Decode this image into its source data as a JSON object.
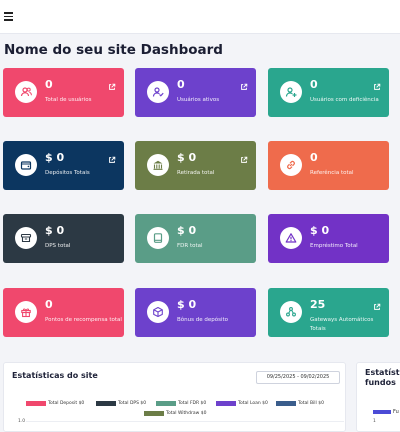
{
  "header": {
    "menu_icon": "hamburger-icon"
  },
  "page": {
    "title": "Nome do seu site Dashboard"
  },
  "cards": [
    {
      "name": "card-total-usuarios",
      "value": "0",
      "label": "Total de usuários",
      "color": "#f0486d",
      "icon": "users-icon",
      "link": true
    },
    {
      "name": "card-usuarios-ativos",
      "value": "0",
      "label": "Usuários ativos",
      "color": "#6d41cc",
      "icon": "user-check-icon",
      "link": true
    },
    {
      "name": "card-usuarios-deficiencia",
      "value": "0",
      "label": "Usuários com deficiência",
      "color": "#2aa68e",
      "icon": "user-plus-icon",
      "link": true
    },
    {
      "name": "card-depositos-totais",
      "value": "$ 0",
      "label": "Depósitos Totais",
      "color": "#0c3660",
      "icon": "wallet-icon",
      "link": true
    },
    {
      "name": "card-retirada-total",
      "value": "$ 0",
      "label": "Retirada total",
      "color": "#6c7d47",
      "icon": "bank-icon",
      "link": true
    },
    {
      "name": "card-referencia-total",
      "value": "0",
      "label": "Referência total",
      "color": "#ef6b4c",
      "icon": "link-icon",
      "link": false
    },
    {
      "name": "card-dps-total",
      "value": "$ 0",
      "label": "DPS total",
      "color": "#2c3944",
      "icon": "archive-icon",
      "link": false
    },
    {
      "name": "card-fdr-total",
      "value": "$ 0",
      "label": "FDR total",
      "color": "#5a9d87",
      "icon": "book-icon",
      "link": false
    },
    {
      "name": "card-emprestimo-total",
      "value": "$ 0",
      "label": "Empréstimo Total",
      "color": "#7232c6",
      "icon": "warning-icon",
      "link": false
    },
    {
      "name": "card-pontos-recompensa",
      "value": "0",
      "label": "Pontos de recompensa total",
      "color": "#f0486d",
      "icon": "gift-icon",
      "link": false
    },
    {
      "name": "card-bonus-deposito",
      "value": "$ 0",
      "label": "Bônus de depósito",
      "color": "#6d41cc",
      "icon": "box-icon",
      "link": false
    },
    {
      "name": "card-gateways-automaticos",
      "value": "25",
      "label": "Gateways Automáticos Totais",
      "color": "#2aa68e",
      "icon": "share-icon",
      "link": true
    }
  ],
  "site_stats": {
    "title": "Estatísticas do site",
    "date_range": "09/25/2025 - 09/02/2025",
    "legend": [
      {
        "label": "Total Deposit $0",
        "color": "#f0486d"
      },
      {
        "label": "Total DPS $0",
        "color": "#2c3944"
      },
      {
        "label": "Total FDR $0",
        "color": "#5a9d87"
      },
      {
        "label": "Total Loan $0",
        "color": "#6d41cc"
      },
      {
        "label": "Total Bill $0",
        "color": "#3a5d8c"
      },
      {
        "label": "Total Withdraw $0",
        "color": "#6c7d47"
      }
    ],
    "y_tick": "1.0"
  },
  "funds_stats": {
    "title": "Estatísticas fundos",
    "legend_label": "Fu",
    "y_tick": "1"
  }
}
